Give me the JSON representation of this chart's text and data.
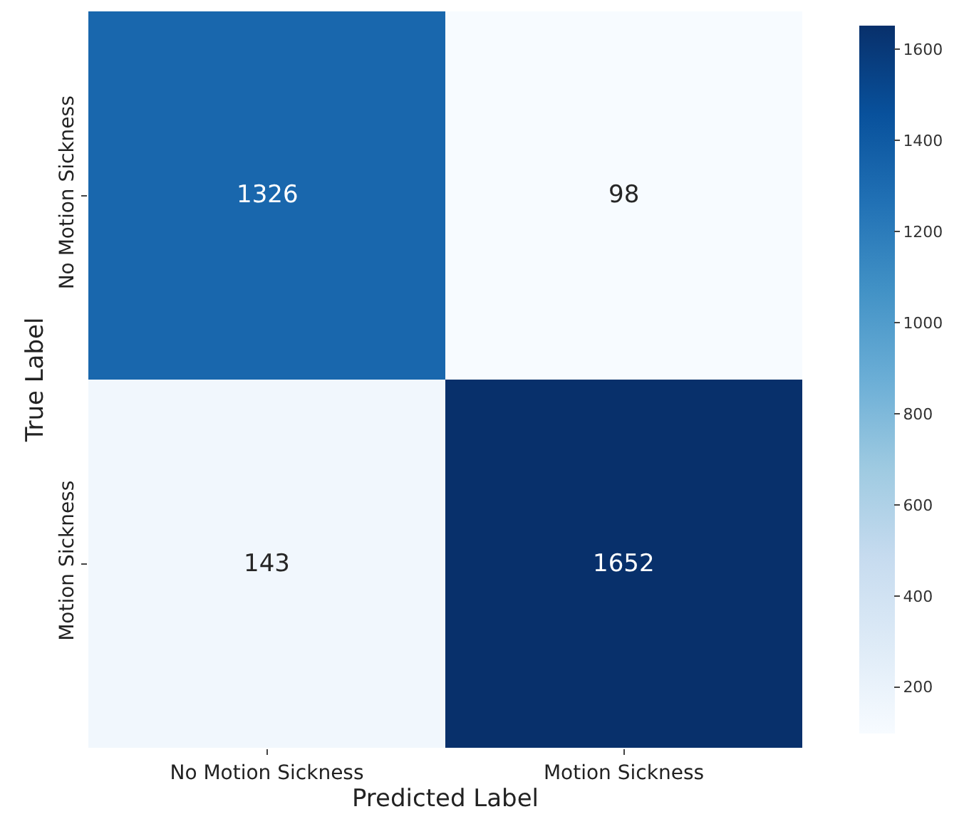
{
  "chart_data": {
    "type": "heatmap",
    "xlabel": "Predicted Label",
    "ylabel": "True Label",
    "categories": [
      "No Motion Sickness",
      "Motion Sickness"
    ],
    "y_categories": [
      "No Motion Sickness",
      "Motion Sickness"
    ],
    "cells": [
      [
        1326,
        98
      ],
      [
        143,
        1652
      ]
    ],
    "clim": [
      98,
      1652
    ],
    "cticks": [
      200,
      400,
      600,
      800,
      1000,
      1200,
      1400,
      1600
    ],
    "data_labels": true
  }
}
